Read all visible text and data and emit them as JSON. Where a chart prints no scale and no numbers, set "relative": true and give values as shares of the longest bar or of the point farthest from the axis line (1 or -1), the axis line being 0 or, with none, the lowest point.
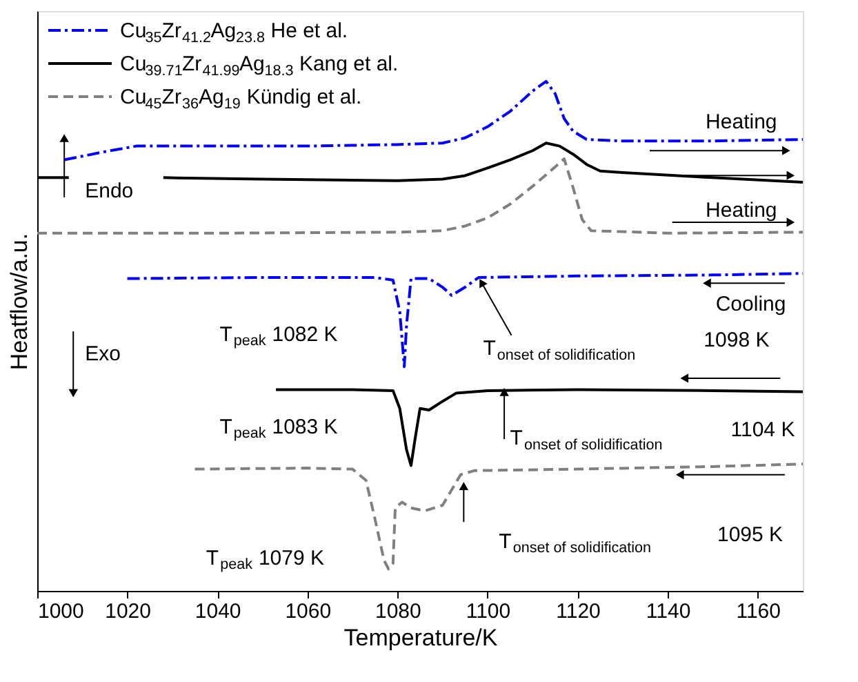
{
  "chart_data": {
    "type": "line",
    "relative": true,
    "xlabel": "Temperature/K",
    "ylabel": "Heatflow/a.u.",
    "xlim": [
      1000,
      1170
    ],
    "xticks": [
      1000,
      1020,
      1040,
      1060,
      1080,
      1100,
      1120,
      1140,
      1160
    ],
    "tick_labels": "x",
    "grid": false,
    "legend": "top left",
    "series": [
      {
        "name": "Cu$_{35}$Zr$_{41.2}$Ag$_{23.8}$ He et al.",
        "color": "#0000ff",
        "line_style": "dashdot",
        "x": [
          1006,
          1015,
          1022,
          1040,
          1060,
          1080,
          1090,
          1095,
          1100,
          1105,
          1110,
          1113,
          1115,
          1117,
          1119,
          1122,
          1130,
          1150,
          1170
        ],
        "values": [
          0.846,
          0.862,
          0.873,
          0.873,
          0.873,
          0.876,
          0.879,
          0.889,
          0.911,
          0.941,
          0.981,
          1.0,
          0.976,
          0.927,
          0.902,
          0.886,
          0.883,
          0.883,
          0.886
        ]
      },
      {
        "name": "Cu$_{39.71}$Zr$_{41.99}$Ag$_{18.3}$ Kang et al.",
        "color": "#000000",
        "line_style": "solid",
        "x": [
          1000,
          1007,
          1015,
          1028,
          1050,
          1080,
          1090,
          1095,
          1100,
          1105,
          1110,
          1113,
          1116,
          1119,
          1122,
          1125,
          1130,
          1150,
          1170
        ],
        "values": [
          0.811,
          0.811,
          null,
          0.811,
          0.808,
          0.805,
          0.808,
          0.815,
          0.83,
          0.846,
          0.864,
          0.879,
          0.873,
          0.857,
          0.837,
          0.824,
          0.821,
          0.811,
          0.802
        ]
      },
      {
        "name": "Cu$_{45}$Zr$_{36}$Ag$_{19}$ Kündig et al.",
        "color": "#808080",
        "line_style": "dashed",
        "x": [
          1000,
          1040,
          1080,
          1090,
          1095,
          1100,
          1105,
          1110,
          1115,
          1117,
          1119,
          1121,
          1123,
          1140,
          1170
        ],
        "values": [
          0.702,
          0.702,
          0.704,
          0.707,
          0.716,
          0.732,
          0.759,
          0.794,
          0.832,
          0.848,
          0.791,
          0.729,
          0.707,
          0.702,
          0.704
        ]
      },
      {
        "color": "#0000ff",
        "line_style": "dashdot",
        "x": [
          1020,
          1050,
          1075,
          1079,
          1080.5,
          1081.5,
          1082,
          1083,
          1087,
          1090,
          1092,
          1095,
          1098,
          1120,
          1150,
          1170
        ],
        "values": [
          0.613,
          0.615,
          0.615,
          0.61,
          0.548,
          0.44,
          0.521,
          0.613,
          0.613,
          0.596,
          0.58,
          0.596,
          0.615,
          0.618,
          0.62,
          0.623
        ]
      },
      {
        "color": "#000000",
        "line_style": "solid",
        "x": [
          1053,
          1070,
          1079,
          1080.5,
          1082,
          1083,
          1084,
          1085,
          1087,
          1090,
          1093,
          1097,
          1100,
          1120,
          1150,
          1170
        ],
        "values": [
          0.395,
          0.395,
          0.393,
          0.358,
          0.277,
          0.246,
          0.304,
          0.358,
          0.355,
          0.372,
          0.388,
          0.391,
          0.393,
          0.395,
          0.393,
          0.391
        ]
      },
      {
        "color": "#808080",
        "line_style": "dashed",
        "x": [
          1035,
          1060,
          1070,
          1073,
          1075,
          1077,
          1078,
          1079,
          1079.5,
          1081,
          1083,
          1086,
          1090,
          1094,
          1097,
          1120,
          1150,
          1170
        ],
        "values": [
          0.239,
          0.241,
          0.239,
          0.217,
          0.141,
          0.06,
          0.043,
          0.054,
          0.163,
          0.174,
          0.163,
          0.157,
          0.168,
          0.228,
          0.236,
          0.239,
          0.244,
          0.249
        ]
      }
    ],
    "annotations": [
      "Endo",
      "Exo",
      "Heating",
      "Heating",
      "Cooling",
      "T$_{peak}$ 1082 K",
      "T$_{onset of solidification}$",
      "1098 K",
      "T$_{peak}$ 1083 K",
      "T$_{onset of solidification}$",
      "1104 K",
      "T$_{peak}$ 1079 K",
      "T$_{onset of solidification}$",
      "1095 K"
    ]
  }
}
